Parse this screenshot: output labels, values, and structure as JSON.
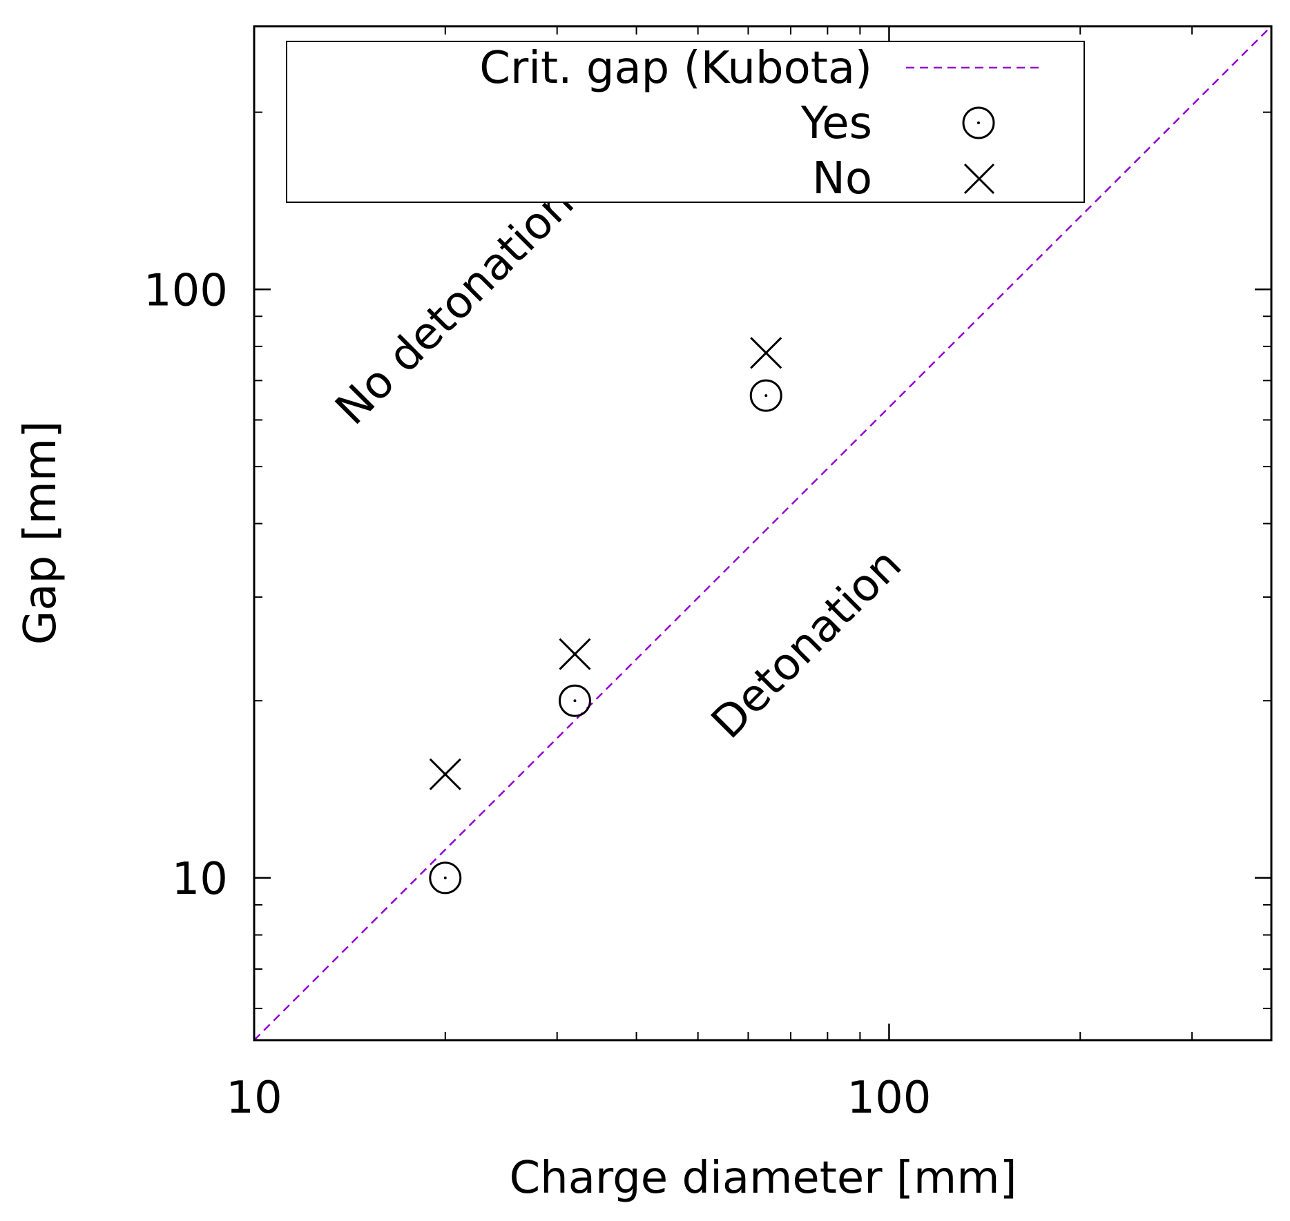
{
  "chart_data": {
    "type": "scatter",
    "xscale": "log",
    "yscale": "log",
    "xlim": [
      10,
      400
    ],
    "ylim": [
      5.3,
      280
    ],
    "xlabel": "Charge diameter [mm]",
    "ylabel": "Gap [mm]",
    "xticks": [
      {
        "value": 10,
        "label": "10"
      },
      {
        "value": 100,
        "label": "100"
      }
    ],
    "yticks": [
      {
        "value": 10,
        "label": "10"
      },
      {
        "value": 100,
        "label": "100"
      }
    ],
    "legend_position": "top",
    "series": [
      {
        "name": "Crit. gap (Kubota)",
        "kind": "line",
        "style": "dashed",
        "color": "#9400D3",
        "x": [
          10,
          400
        ],
        "y": [
          5.3,
          280
        ]
      },
      {
        "name": "Yes",
        "kind": "marker",
        "marker": "circle-dot",
        "color": "#000000",
        "x": [
          20,
          32,
          64
        ],
        "y": [
          10,
          20,
          66
        ]
      },
      {
        "name": "No",
        "kind": "marker",
        "marker": "x",
        "color": "#000000",
        "x": [
          20,
          32,
          64
        ],
        "y": [
          15,
          24,
          78
        ]
      }
    ],
    "annotations": [
      {
        "text": "No detonation",
        "x": 21.5,
        "y": 90,
        "rotation": -45
      },
      {
        "text": "Detonation",
        "x": 77,
        "y": 24,
        "rotation": -45
      }
    ]
  }
}
